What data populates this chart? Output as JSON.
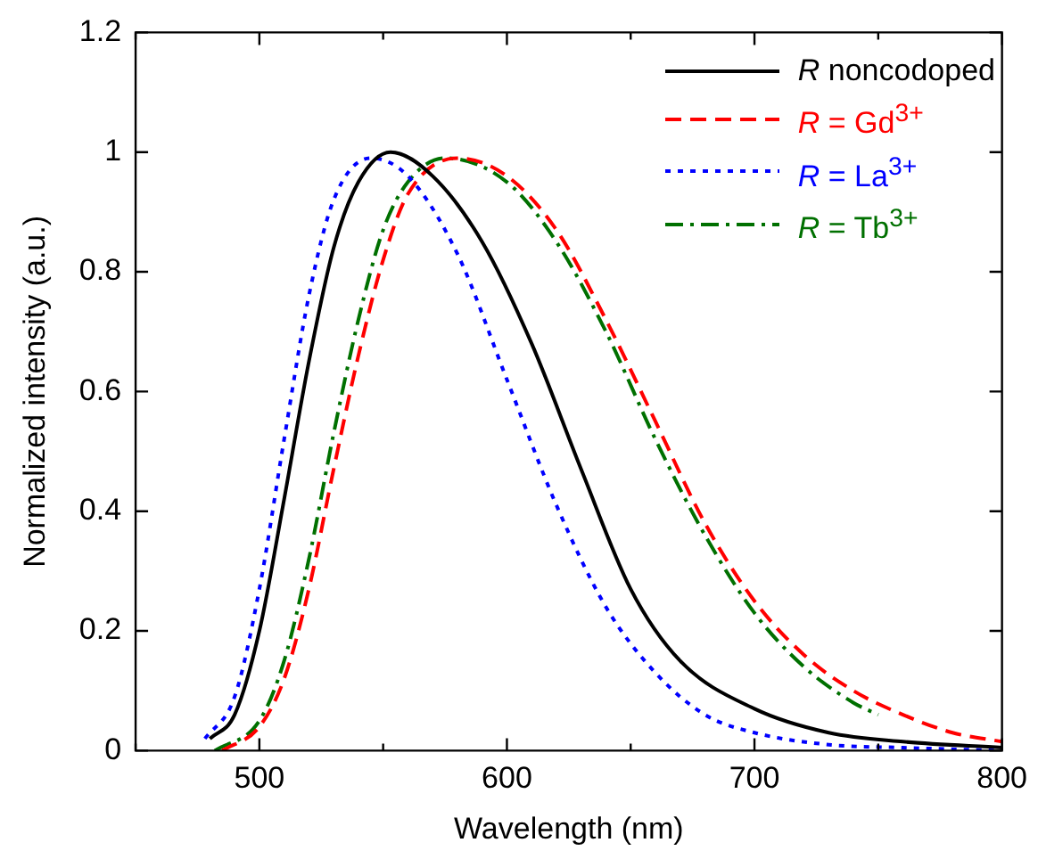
{
  "chart_data": {
    "type": "line",
    "xlabel": "Wavelength (nm)",
    "ylabel": "Normalized intensity (a.u.)",
    "xlim": [
      450,
      800
    ],
    "xticks": [
      {
        "value": 450,
        "label": null
      },
      500,
      {
        "value": 550,
        "label": null
      },
      600,
      {
        "value": 650,
        "label": null
      },
      700,
      {
        "value": 750,
        "label": null
      },
      800
    ],
    "ylim": [
      0,
      1.2
    ],
    "yticks": [
      0,
      0.2,
      0.4,
      0.6,
      0.8,
      1,
      1.2
    ],
    "grid": false,
    "legend": "top right",
    "marker": "none",
    "series": [
      {
        "name": "R noncodoped",
        "color": "#000000",
        "line_style": "solid",
        "x": [
          480,
          490,
          500,
          510,
          520,
          530,
          540,
          553,
          570,
          590,
          610,
          630,
          650,
          670,
          700,
          730,
          760,
          800
        ],
        "values": [
          0.02,
          0.06,
          0.2,
          0.42,
          0.65,
          0.84,
          0.95,
          1.0,
          0.96,
          0.85,
          0.68,
          0.47,
          0.27,
          0.15,
          0.07,
          0.03,
          0.015,
          0.005
        ]
      },
      {
        "name": "R = Gd$^{3+}$",
        "color": "#ff0000",
        "line_style": "dashed",
        "x": [
          485,
          500,
          510,
          520,
          530,
          540,
          550,
          560,
          580,
          600,
          620,
          640,
          660,
          680,
          700,
          720,
          740,
          760,
          780,
          800
        ],
        "values": [
          0,
          0.04,
          0.12,
          0.27,
          0.47,
          0.66,
          0.82,
          0.93,
          0.99,
          0.96,
          0.87,
          0.72,
          0.55,
          0.38,
          0.25,
          0.16,
          0.1,
          0.06,
          0.03,
          0.015
        ]
      },
      {
        "name": "R = La$^{3+}$",
        "color": "#0000ff",
        "line_style": "dotted",
        "x": [
          478,
          490,
          500,
          510,
          520,
          530,
          545,
          560,
          580,
          600,
          620,
          640,
          660,
          680,
          700,
          730,
          760,
          800
        ],
        "values": [
          0.02,
          0.09,
          0.27,
          0.52,
          0.76,
          0.92,
          0.99,
          0.96,
          0.83,
          0.62,
          0.41,
          0.24,
          0.13,
          0.06,
          0.03,
          0.01,
          0.005,
          0
        ]
      },
      {
        "name": "R = Tb$^{3+}$",
        "color": "#007000",
        "line_style": "dashdot",
        "x": [
          482,
          500,
          510,
          520,
          530,
          540,
          550,
          560,
          575,
          600,
          620,
          640,
          660,
          680,
          700,
          720,
          740,
          750
        ],
        "values": [
          0,
          0.05,
          0.15,
          0.32,
          0.53,
          0.72,
          0.87,
          0.95,
          0.99,
          0.95,
          0.85,
          0.7,
          0.52,
          0.36,
          0.23,
          0.14,
          0.08,
          0.06
        ]
      }
    ]
  }
}
